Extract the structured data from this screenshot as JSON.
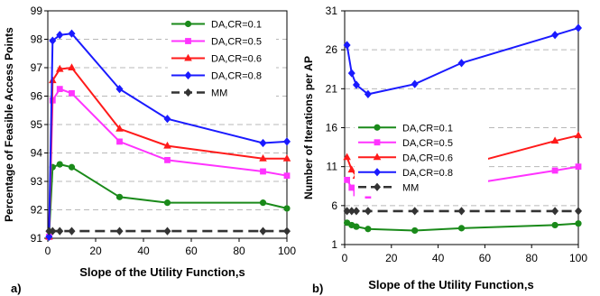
{
  "chart_data": [
    {
      "type": "line",
      "panel_label": "a)",
      "xlabel": "Slope of the Utility Function,s",
      "ylabel": "Percentage of Feasible Access Points",
      "xlim": [
        0,
        100
      ],
      "ylim": [
        91,
        99
      ],
      "x_ticks": [
        "0",
        "20",
        "40",
        "60",
        "80",
        "100"
      ],
      "y_ticks": [
        "91",
        "92",
        "93",
        "94",
        "95",
        "96",
        "97",
        "98",
        "99"
      ],
      "grid": "horizontal dashed",
      "legend_position": "top-right",
      "series": [
        {
          "name": "DA,CR=0.1",
          "color": "#1a8a1a",
          "marker": "circle",
          "points": [
            [
              0.5,
              91.05
            ],
            [
              2,
              93.5
            ],
            [
              5,
              93.6
            ],
            [
              10,
              93.5
            ],
            [
              30,
              92.45
            ],
            [
              50,
              92.25
            ],
            [
              90,
              92.25
            ],
            [
              100,
              92.05
            ]
          ]
        },
        {
          "name": "DA,CR=0.5",
          "color": "#ff33ff",
          "marker": "square",
          "points": [
            [
              0.5,
              91.05
            ],
            [
              2,
              95.85
            ],
            [
              5,
              96.25
            ],
            [
              10,
              96.1
            ],
            [
              30,
              94.4
            ],
            [
              50,
              93.75
            ],
            [
              90,
              93.35
            ],
            [
              100,
              93.2
            ]
          ]
        },
        {
          "name": "DA,CR=0.6",
          "color": "#ff1a1a",
          "marker": "triangle",
          "points": [
            [
              0.5,
              91.05
            ],
            [
              2,
              96.55
            ],
            [
              5,
              96.95
            ],
            [
              10,
              97.0
            ],
            [
              30,
              94.85
            ],
            [
              50,
              94.25
            ],
            [
              90,
              93.8
            ],
            [
              100,
              93.8
            ]
          ]
        },
        {
          "name": "DA,CR=0.8",
          "color": "#1a1aff",
          "marker": "diamond",
          "points": [
            [
              0.5,
              91.05
            ],
            [
              2,
              97.95
            ],
            [
              5,
              98.15
            ],
            [
              10,
              98.2
            ],
            [
              30,
              96.25
            ],
            [
              50,
              95.2
            ],
            [
              90,
              94.35
            ],
            [
              100,
              94.4
            ]
          ]
        },
        {
          "name": "MM",
          "color": "#333333",
          "marker": "diamond",
          "dashed": true,
          "points": [
            [
              0.5,
              91.25
            ],
            [
              2,
              91.25
            ],
            [
              5,
              91.25
            ],
            [
              10,
              91.25
            ],
            [
              30,
              91.25
            ],
            [
              50,
              91.25
            ],
            [
              90,
              91.25
            ],
            [
              100,
              91.25
            ]
          ]
        }
      ]
    },
    {
      "type": "line",
      "panel_label": "b)",
      "xlabel": "Slope of the Utility Function,s",
      "ylabel": "Number of Iterations per AP",
      "xlim": [
        0,
        100
      ],
      "ylim": [
        1,
        31
      ],
      "x_ticks": [
        "0",
        "20",
        "40",
        "60",
        "80",
        "100"
      ],
      "y_ticks": [
        "1",
        "6",
        "11",
        "16",
        "21",
        "26",
        "31"
      ],
      "grid": "horizontal dashed",
      "legend_position": "middle-left",
      "series": [
        {
          "name": "DA,CR=0.1",
          "color": "#1a8a1a",
          "marker": "circle",
          "points": [
            [
              1,
              3.8
            ],
            [
              3,
              3.5
            ],
            [
              5,
              3.3
            ],
            [
              10,
              3.0
            ],
            [
              30,
              2.8
            ],
            [
              50,
              3.1
            ],
            [
              90,
              3.5
            ],
            [
              100,
              3.7
            ]
          ]
        },
        {
          "name": "DA,CR=0.5",
          "color": "#ff33ff",
          "marker": "square",
          "points": [
            [
              1,
              9.3
            ],
            [
              3,
              8.3
            ],
            [
              5,
              7.6
            ],
            [
              10,
              7.3
            ],
            [
              30,
              7.6
            ],
            [
              50,
              8.6
            ],
            [
              90,
              10.5
            ],
            [
              100,
              11.0
            ]
          ]
        },
        {
          "name": "DA,CR=0.6",
          "color": "#ff1a1a",
          "marker": "triangle",
          "points": [
            [
              1,
              12.2
            ],
            [
              3,
              10.6
            ],
            [
              5,
              9.8
            ],
            [
              10,
              9.3
            ],
            [
              30,
              9.8
            ],
            [
              50,
              11.1
            ],
            [
              90,
              14.3
            ],
            [
              100,
              15.0
            ]
          ]
        },
        {
          "name": "DA,CR=0.8",
          "color": "#1a1aff",
          "marker": "diamond",
          "points": [
            [
              1,
              26.6
            ],
            [
              3,
              23.0
            ],
            [
              5,
              21.5
            ],
            [
              10,
              20.3
            ],
            [
              30,
              21.6
            ],
            [
              50,
              24.3
            ],
            [
              90,
              27.9
            ],
            [
              100,
              28.8
            ]
          ]
        },
        {
          "name": "MM",
          "color": "#333333",
          "marker": "diamond",
          "dashed": true,
          "points": [
            [
              1,
              5.3
            ],
            [
              3,
              5.3
            ],
            [
              5,
              5.3
            ],
            [
              10,
              5.3
            ],
            [
              30,
              5.3
            ],
            [
              50,
              5.3
            ],
            [
              90,
              5.3
            ],
            [
              100,
              5.3
            ]
          ]
        }
      ]
    }
  ]
}
